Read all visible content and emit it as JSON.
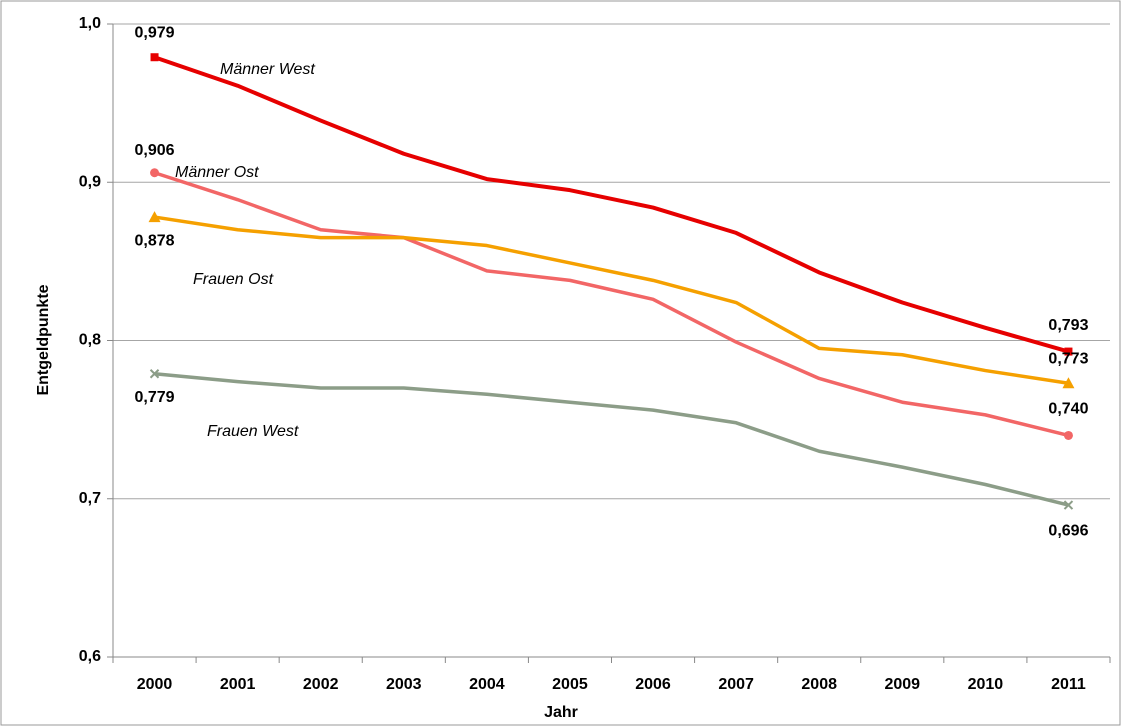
{
  "chart_data": {
    "type": "line",
    "x_label": "Jahr",
    "y_label": "Entgeldpunkte",
    "categories": [
      "2000",
      "2001",
      "2002",
      "2003",
      "2004",
      "2005",
      "2006",
      "2007",
      "2008",
      "2009",
      "2010",
      "2011"
    ],
    "ylim": [
      0.6,
      1.0
    ],
    "yticks": [
      {
        "value": 0.6,
        "label": "0,6"
      },
      {
        "value": 0.7,
        "label": "0,7"
      },
      {
        "value": 0.8,
        "label": "0,8"
      },
      {
        "value": 0.9,
        "label": "0,9"
      },
      {
        "value": 1.0,
        "label": "1,0"
      }
    ],
    "grid": true,
    "series": [
      {
        "name": "Männer West",
        "color": "#e60000",
        "marker": "square",
        "values": [
          0.979,
          0.961,
          0.939,
          0.918,
          0.902,
          0.895,
          0.884,
          0.868,
          0.843,
          0.824,
          0.808,
          0.793
        ],
        "value_labels": [
          "0,979",
          null,
          null,
          null,
          null,
          null,
          null,
          null,
          null,
          null,
          null,
          "0,793"
        ]
      },
      {
        "name": "Männer Ost",
        "color": "#f26666",
        "marker": "circle",
        "values": [
          0.906,
          0.889,
          0.87,
          0.865,
          0.844,
          0.838,
          0.826,
          0.799,
          0.776,
          0.761,
          0.753,
          0.74
        ],
        "value_labels": [
          "0,906",
          null,
          null,
          null,
          null,
          null,
          null,
          null,
          null,
          null,
          null,
          "0,740"
        ]
      },
      {
        "name": "Frauen Ost",
        "color": "#f5a000",
        "marker": "triangle",
        "values": [
          0.878,
          0.87,
          0.865,
          0.865,
          0.86,
          0.849,
          0.838,
          0.824,
          0.795,
          0.791,
          0.781,
          0.773
        ],
        "value_labels": [
          "0,878",
          null,
          null,
          null,
          null,
          null,
          null,
          null,
          null,
          null,
          null,
          "0,773"
        ]
      },
      {
        "name": "Frauen West",
        "color": "#8c9d88",
        "marker": "x",
        "values": [
          0.779,
          0.774,
          0.77,
          0.77,
          0.766,
          0.761,
          0.756,
          0.748,
          0.73,
          0.72,
          0.709,
          0.696
        ],
        "value_labels": [
          "0,779",
          null,
          null,
          null,
          null,
          null,
          null,
          null,
          null,
          null,
          null,
          "0,696"
        ]
      }
    ]
  }
}
